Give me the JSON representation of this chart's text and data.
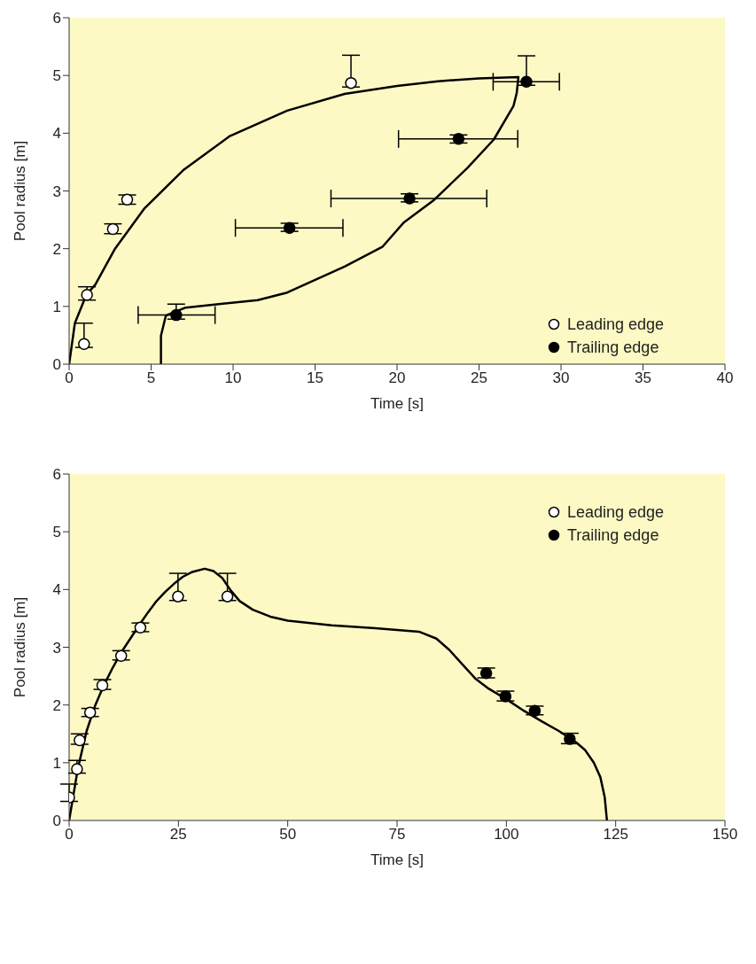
{
  "chart_data": [
    {
      "type": "scatter",
      "xlabel": "Time [s]",
      "ylabel": "Pool radius [m]",
      "xlim": [
        0,
        40
      ],
      "ylim": [
        0,
        6
      ],
      "xticks": [
        0,
        5,
        10,
        15,
        20,
        25,
        30,
        35,
        40
      ],
      "yticks": [
        0,
        1,
        2,
        3,
        4,
        5,
        6
      ],
      "legend": "bottom right",
      "marker": "circle",
      "series": [
        {
          "type": "line",
          "color": "#000000",
          "marker": "none",
          "line_style": "solid",
          "x": [
            0,
            0.35,
            1.05,
            1.6,
            2.8,
            4.6,
            7,
            9.8,
            13.3,
            16.8,
            20,
            22.5,
            25,
            27.4,
            27.3,
            27.1,
            25.9,
            24.3,
            22.2,
            20.4,
            19.1,
            16.8,
            13.3,
            11.5,
            7.1,
            5.9,
            5.6,
            5.6
          ],
          "values": [
            0,
            0.71,
            1.2,
            1.38,
            2.0,
            2.7,
            3.37,
            3.95,
            4.39,
            4.68,
            4.82,
            4.9,
            4.95,
            4.97,
            4.7,
            4.47,
            3.89,
            3.4,
            2.83,
            2.45,
            2.03,
            1.69,
            1.24,
            1.11,
            0.98,
            0.84,
            0.49,
            0
          ]
        },
        {
          "name": "Leading edge",
          "color": "#ffffff",
          "x": [
            0.91,
            1.09,
            2.67,
            3.54,
            17.19
          ],
          "values": [
            0.35,
            1.2,
            2.34,
            2.85,
            4.87
          ],
          "errors": [
            [
              0.29,
              0.71
            ],
            [
              1.11,
              1.34
            ],
            [
              2.26,
              2.43
            ],
            [
              2.77,
              2.93
            ],
            [
              4.8,
              5.35
            ]
          ]
        },
        {
          "name": "Trailing edge",
          "color": "#000000",
          "x": [
            6.53,
            13.44,
            20.76,
            23.75,
            27.89
          ],
          "values": [
            0.85,
            2.36,
            2.87,
            3.9,
            4.89
          ],
          "errors": [
            [
              0.78,
              1.04
            ],
            [
              2.3,
              2.44
            ],
            [
              2.81,
              2.95
            ],
            [
              3.83,
              3.97
            ],
            [
              4.83,
              5.34
            ]
          ],
          "xerrors": [
            [
              4.21,
              8.9
            ],
            [
              10.14,
              16.7
            ],
            [
              15.97,
              25.47
            ],
            [
              20.09,
              27.36
            ],
            [
              25.86,
              29.9
            ]
          ]
        }
      ]
    },
    {
      "type": "scatter",
      "xlabel": "Time [s]",
      "ylabel": "Pool radius [m]",
      "xlim": [
        0,
        150
      ],
      "ylim": [
        0,
        6
      ],
      "xticks": [
        0,
        25,
        50,
        75,
        100,
        125,
        150
      ],
      "yticks": [
        0,
        1,
        2,
        3,
        4,
        5,
        6
      ],
      "legend": "top right",
      "marker": "circle",
      "series": [
        {
          "type": "line",
          "color": "#000000",
          "marker": "none",
          "line_style": "solid",
          "x": [
            0,
            2,
            4,
            6,
            8,
            10,
            12,
            14,
            16,
            18,
            20,
            22,
            24,
            26,
            28,
            31,
            33,
            35,
            37,
            39,
            42,
            46,
            50,
            60,
            70,
            80,
            84,
            87,
            90,
            93,
            96,
            100,
            104,
            108,
            112,
            116,
            118,
            120,
            121.5,
            122.5,
            123
          ],
          "values": [
            0,
            0.9,
            1.55,
            2.0,
            2.35,
            2.65,
            2.92,
            3.15,
            3.38,
            3.6,
            3.8,
            3.96,
            4.1,
            4.22,
            4.3,
            4.36,
            4.32,
            4.2,
            3.98,
            3.8,
            3.65,
            3.53,
            3.46,
            3.38,
            3.33,
            3.27,
            3.15,
            2.95,
            2.7,
            2.45,
            2.28,
            2.1,
            1.9,
            1.72,
            1.55,
            1.35,
            1.22,
            1.0,
            0.75,
            0.4,
            0
          ]
        },
        {
          "name": "Leading edge",
          "color": "#ffffff",
          "x": [
            0,
            1.8,
            2.4,
            4.8,
            7.6,
            11.9,
            16.3,
            24.9,
            36.2
          ],
          "values": [
            0.4,
            0.89,
            1.39,
            1.87,
            2.34,
            2.85,
            3.34,
            3.88,
            3.88
          ],
          "errors": [
            [
              0.33,
              0.63
            ],
            [
              0.82,
              1.04
            ],
            [
              1.32,
              1.5
            ],
            [
              1.8,
              1.94
            ],
            [
              2.27,
              2.44
            ],
            [
              2.78,
              2.94
            ],
            [
              3.27,
              3.42
            ],
            [
              3.81,
              4.28
            ],
            [
              3.81,
              4.28
            ]
          ]
        },
        {
          "name": "Trailing edge",
          "color": "#000000",
          "x": [
            95.4,
            99.8,
            106.5,
            114.5
          ],
          "values": [
            2.55,
            2.15,
            1.9,
            1.41
          ],
          "errors": [
            [
              2.47,
              2.64
            ],
            [
              2.07,
              2.24
            ],
            [
              1.83,
              1.98
            ],
            [
              1.33,
              1.51
            ]
          ]
        }
      ]
    }
  ]
}
